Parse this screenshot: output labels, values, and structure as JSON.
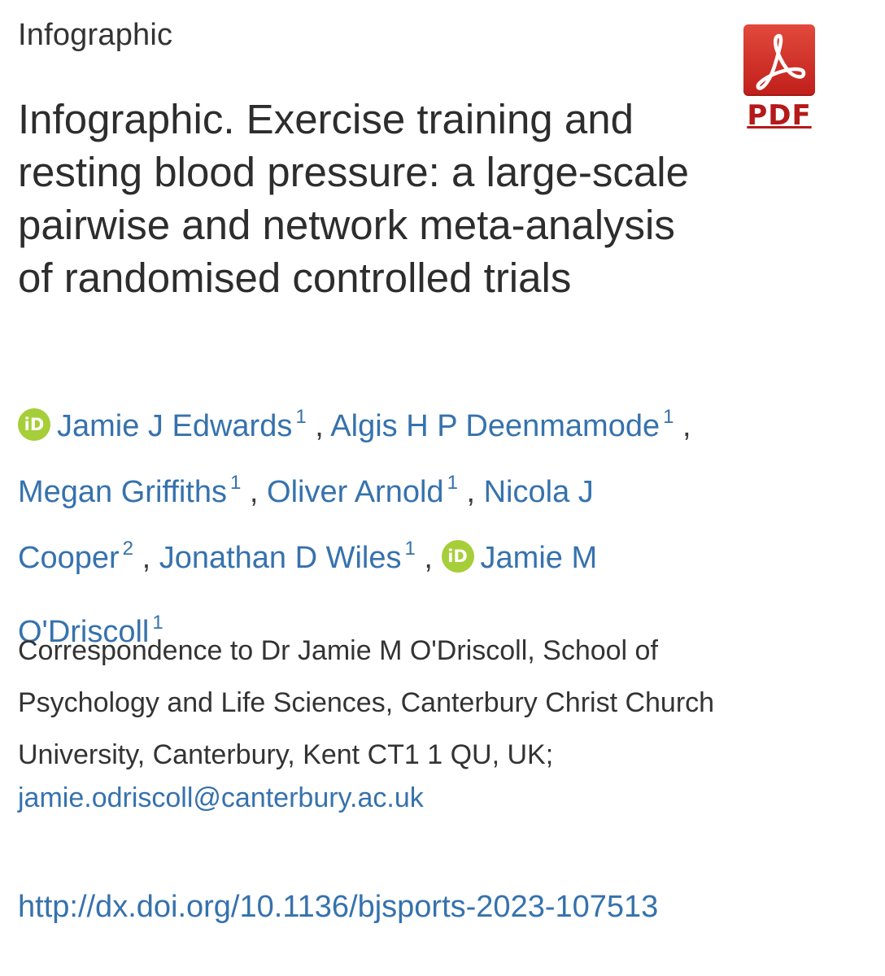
{
  "section_label": "Infographic",
  "pdf": {
    "icon": "pdf-icon",
    "label": "PDF"
  },
  "article": {
    "title": "Infographic. Exercise training and resting blood pressure: a large-scale pairwise and network meta-analysis of randomised controlled trials"
  },
  "authors": {
    "separator": ",",
    "list": [
      {
        "name": "Jamie J Edwards",
        "aff": "1",
        "orcid": true
      },
      {
        "name": "Algis H P Deenmamode",
        "aff": "1"
      },
      {
        "name": "Megan Griffiths",
        "aff": "1"
      },
      {
        "name": "Oliver Arnold",
        "aff": "1"
      },
      {
        "name_part1": "Nicola J",
        "name_part2": "Cooper",
        "aff": "2"
      },
      {
        "name": "Jonathan D Wiles",
        "aff": "1"
      },
      {
        "name_part1": "Jamie M",
        "name_part2": "O'Driscoll",
        "aff": "1",
        "orcid": true
      }
    ],
    "orcid_icon_text": "iD"
  },
  "correspondence": {
    "text": "Correspondence to Dr Jamie M O'Driscoll, School of Psychology and Life Sciences, Canterbury Christ Church University, Canterbury, Kent CT1 1 QU, UK;",
    "email": "jamie.odriscoll@canterbury.ac.uk"
  },
  "doi": "http://dx.doi.org/10.1136/bjsports-2023-107513",
  "colors": {
    "link": "#3672ad",
    "pdf_red": "#c01f1a",
    "orcid_green": "#a6ce39",
    "text": "#2d2d2d"
  }
}
